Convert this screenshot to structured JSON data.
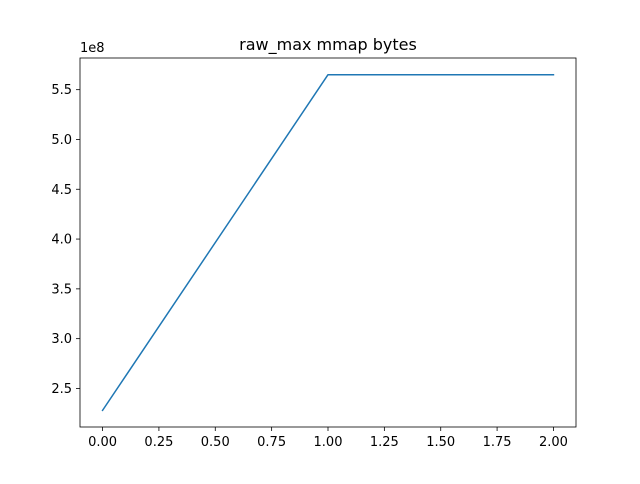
{
  "chart_data": {
    "type": "line",
    "title": "raw_max mmap bytes",
    "xlabel": "",
    "ylabel": "",
    "y_offset_label": "1e8",
    "xlim": [
      -0.1,
      2.1
    ],
    "ylim": [
      2.113,
      5.818
    ],
    "xticks": [
      0.0,
      0.25,
      0.5,
      0.75,
      1.0,
      1.25,
      1.5,
      1.75,
      2.0
    ],
    "xtick_labels": [
      "0.00",
      "0.25",
      "0.50",
      "0.75",
      "1.00",
      "1.25",
      "1.50",
      "1.75",
      "2.00"
    ],
    "yticks": [
      2.5,
      3.0,
      3.5,
      4.0,
      4.5,
      5.0,
      5.5
    ],
    "ytick_labels": [
      "2.5",
      "3.0",
      "3.5",
      "4.0",
      "4.5",
      "5.0",
      "5.5"
    ],
    "grid": false,
    "series": [
      {
        "color": "#1f77b4",
        "x": [
          0,
          1,
          2
        ],
        "y": [
          2.28,
          5.65,
          5.65
        ]
      }
    ]
  }
}
